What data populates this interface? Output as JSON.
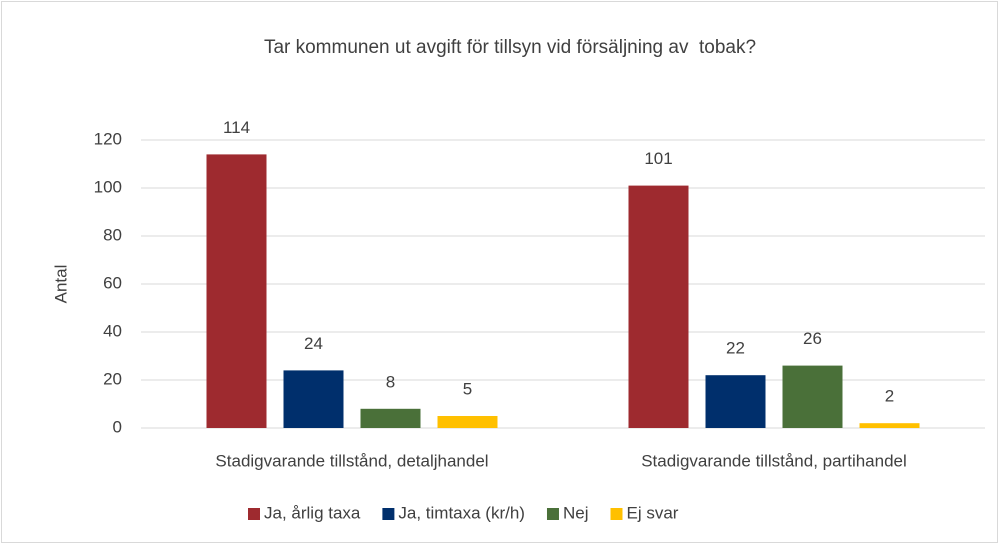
{
  "chart_data": {
    "type": "bar",
    "title": "Tar kommunen ut avgift för tillsyn vid försäljning av  tobak?",
    "y_label": "Antal",
    "categories": [
      "Stadigvarande tillstånd, detaljhandel",
      "Stadigvarande tillstånd, partihandel"
    ],
    "series": [
      {
        "name": "Ja, årlig taxa",
        "color": "#9e2a2f",
        "values": [
          114,
          101
        ]
      },
      {
        "name": "Ja, timtaxa (kr/h)",
        "color": "#002f6c",
        "values": [
          24,
          22
        ]
      },
      {
        "name": "Nej",
        "color": "#4a7039",
        "values": [
          8,
          26
        ]
      },
      {
        "name": "Ej svar",
        "color": "#ffc000",
        "values": [
          5,
          2
        ]
      }
    ],
    "ylim": [
      0,
      120
    ],
    "yticks": [
      0,
      20,
      40,
      60,
      80,
      100,
      120
    ],
    "grid": true,
    "legend": "bottom"
  }
}
